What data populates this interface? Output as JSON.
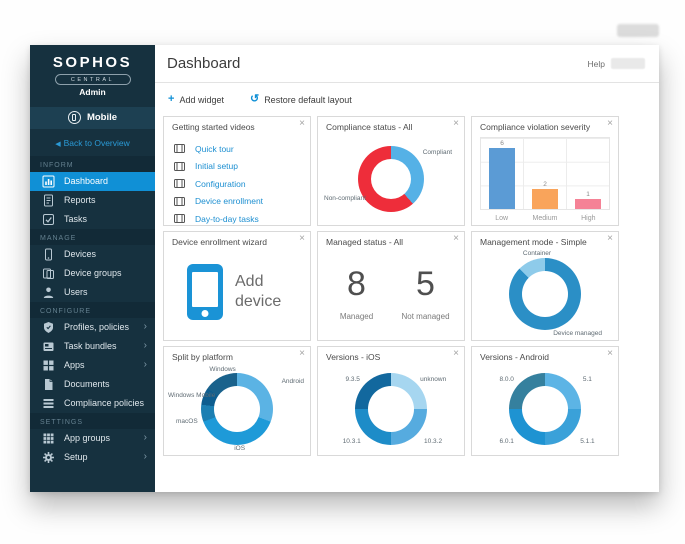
{
  "glyphs": {
    "close": "×",
    "chevron": "›",
    "back": "◀",
    "plus": "+",
    "restore": "↺"
  },
  "sidebar": {
    "logo": {
      "brand": "SOPHOS",
      "product": "CENTRAL",
      "role": "Admin"
    },
    "app_label": "Mobile",
    "back_label": "Back to Overview",
    "sections": [
      {
        "label": "INFORM",
        "items": [
          {
            "label": "Dashboard",
            "icon": "dashboard-icon",
            "active": true
          },
          {
            "label": "Reports",
            "icon": "report-icon"
          },
          {
            "label": "Tasks",
            "icon": "tasks-icon"
          }
        ]
      },
      {
        "label": "MANAGE",
        "items": [
          {
            "label": "Devices",
            "icon": "device-icon"
          },
          {
            "label": "Device groups",
            "icon": "device-group-icon"
          },
          {
            "label": "Users",
            "icon": "user-icon"
          }
        ]
      },
      {
        "label": "CONFIGURE",
        "items": [
          {
            "label": "Profiles, policies",
            "icon": "shield-icon",
            "expandable": true
          },
          {
            "label": "Task bundles",
            "icon": "task-bundle-icon",
            "expandable": true
          },
          {
            "label": "Apps",
            "icon": "apps-icon",
            "expandable": true
          },
          {
            "label": "Documents",
            "icon": "document-icon"
          },
          {
            "label": "Compliance policies",
            "icon": "policy-list-icon"
          }
        ]
      },
      {
        "label": "SETTINGS",
        "items": [
          {
            "label": "App groups",
            "icon": "app-groups-icon",
            "expandable": true
          },
          {
            "label": "Setup",
            "icon": "gear-icon",
            "expandable": true
          }
        ]
      }
    ]
  },
  "header": {
    "title": "Dashboard",
    "help": "Help"
  },
  "toolbar": {
    "add_widget": "Add widget",
    "restore": "Restore default layout"
  },
  "widgets": {
    "getting_started": {
      "title": "Getting started videos",
      "items": [
        "Quick tour",
        "Initial setup",
        "Configuration",
        "Device enrollment",
        "Day-to-day tasks"
      ]
    },
    "compliance_status": {
      "title": "Compliance status - All",
      "chart_data": {
        "type": "donut",
        "series": [
          {
            "label": "Compliant",
            "value": 5,
            "color": "#55b1e6"
          },
          {
            "label": "Non-compliant",
            "value": 8,
            "color": "#ee2d3a"
          }
        ]
      }
    },
    "violation_severity": {
      "title": "Compliance violation severity",
      "chart_data": {
        "type": "bar",
        "ylim": [
          0,
          7
        ],
        "series": [
          {
            "label": "Low",
            "value": 6,
            "color": "#5b9bd5"
          },
          {
            "label": "Medium",
            "value": 2,
            "color": "#f9a45b"
          },
          {
            "label": "High",
            "value": 1,
            "color": "#f58296"
          }
        ]
      }
    },
    "enrollment_wizard": {
      "title": "Device enrollment wizard",
      "action_label": "Add device"
    },
    "managed_status": {
      "title": "Managed status - All",
      "stats": [
        {
          "value": "8",
          "label": "Managed"
        },
        {
          "value": "5",
          "label": "Not managed"
        }
      ]
    },
    "management_mode": {
      "title": "Management mode - Simple",
      "chart_data": {
        "type": "donut",
        "series": [
          {
            "label": "Device managed",
            "value": 7,
            "color": "#2b8fc6"
          },
          {
            "label": "Container",
            "value": 1,
            "color": "#8ecbea"
          }
        ]
      }
    },
    "split_platform": {
      "title": "Split by platform",
      "chart_data": {
        "type": "donut",
        "series": [
          {
            "label": "Android",
            "value": 4,
            "color": "#5bb3e4"
          },
          {
            "label": "iOS",
            "value": 5,
            "color": "#1e9ad8"
          },
          {
            "label": "macOS",
            "value": 1,
            "color": "#1c7fb2"
          },
          {
            "label": "Windows Mobile",
            "value": 1,
            "color": "#0d5d8f"
          },
          {
            "label": "Windows",
            "value": 2,
            "color": "#1a628c"
          }
        ]
      }
    },
    "versions_ios": {
      "title": "Versions - iOS",
      "chart_data": {
        "type": "donut",
        "series": [
          {
            "label": "unknown",
            "value": 1,
            "color": "#a6d6f0"
          },
          {
            "label": "10.3.2",
            "value": 1,
            "color": "#56abdf"
          },
          {
            "label": "10.3.1",
            "value": 1,
            "color": "#1d8cc8"
          },
          {
            "label": "9.3.5",
            "value": 1,
            "color": "#12689e"
          }
        ]
      }
    },
    "versions_android": {
      "title": "Versions - Android",
      "chart_data": {
        "type": "donut",
        "series": [
          {
            "label": "5.1",
            "value": 1,
            "color": "#5cb4e5"
          },
          {
            "label": "5.1.1",
            "value": 1,
            "color": "#3aa1d9"
          },
          {
            "label": "6.0.1",
            "value": 1,
            "color": "#1e93d2"
          },
          {
            "label": "8.0.0",
            "value": 1,
            "color": "#35809e"
          }
        ]
      }
    }
  }
}
